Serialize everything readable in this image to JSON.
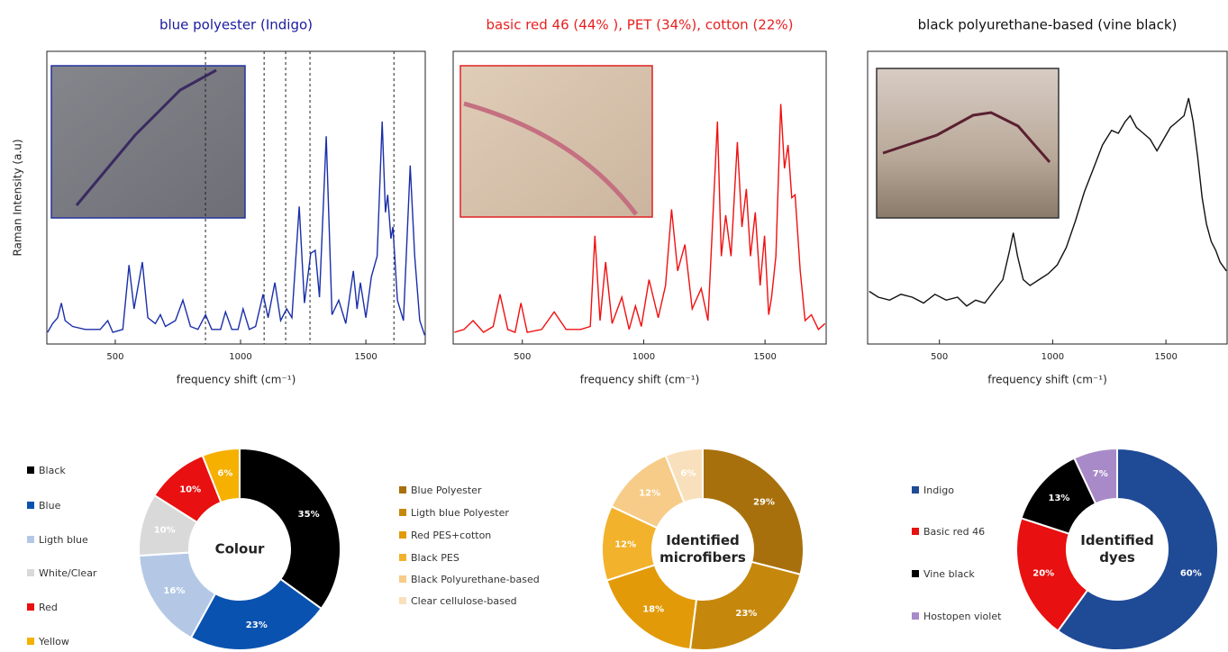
{
  "chart_data": [
    {
      "type": "line",
      "title": "blue polyester (Indigo)",
      "title_color": "#1a1aa0",
      "color": "#1a2fa8",
      "xlabel": "frequency shift (cm⁻¹)",
      "ylabel": "Raman Intensity (a.u)",
      "xlim": [
        227,
        1737
      ],
      "xticks": [
        500,
        1000,
        1500
      ],
      "ylim": [
        0,
        100
      ],
      "vlines": [
        860,
        1094,
        1180,
        1277,
        1612
      ],
      "x": [
        230,
        250,
        270,
        285,
        300,
        330,
        380,
        440,
        470,
        490,
        530,
        555,
        575,
        608,
        630,
        660,
        680,
        700,
        740,
        770,
        800,
        830,
        860,
        885,
        920,
        940,
        965,
        990,
        1010,
        1035,
        1060,
        1090,
        1110,
        1137,
        1160,
        1184,
        1205,
        1234,
        1255,
        1280,
        1298,
        1315,
        1342,
        1365,
        1392,
        1420,
        1450,
        1465,
        1478,
        1500,
        1522,
        1545,
        1565,
        1578,
        1587,
        1600,
        1608,
        1626,
        1650,
        1677,
        1695,
        1715,
        1735
      ],
      "values": [
        4,
        7,
        9,
        14,
        8,
        6,
        5,
        5,
        8,
        4,
        5,
        27,
        12,
        28,
        9,
        7,
        10,
        6,
        8,
        15,
        6,
        5,
        10,
        5,
        5,
        11,
        5,
        5,
        12,
        5,
        6,
        17,
        9,
        21,
        8,
        12,
        9,
        47,
        14,
        31,
        32,
        16,
        71,
        10,
        15,
        7,
        25,
        12,
        21,
        9,
        23,
        30,
        76,
        45,
        51,
        36,
        40,
        15,
        8,
        61,
        30,
        8,
        3
      ]
    },
    {
      "type": "line",
      "title": "basic red 46 (44% ),  PET (34%), cotton (22%)",
      "title_color": "#e82020",
      "color": "#f01010",
      "xlabel": "frequency shift (cm⁻¹)",
      "xlim": [
        215,
        1752
      ],
      "xticks": [
        500,
        1000,
        1500
      ],
      "ylim": [
        0,
        100
      ],
      "x": [
        220,
        260,
        297,
        340,
        380,
        408,
        440,
        470,
        494,
        520,
        580,
        631,
        680,
        740,
        780,
        799,
        820,
        843,
        870,
        910,
        940,
        966,
        990,
        1022,
        1060,
        1090,
        1115,
        1140,
        1170,
        1200,
        1237,
        1265,
        1304,
        1320,
        1338,
        1360,
        1386,
        1405,
        1423,
        1440,
        1460,
        1480,
        1498,
        1515,
        1527,
        1545,
        1565,
        1580,
        1595,
        1610,
        1624,
        1645,
        1665,
        1691,
        1720,
        1747
      ],
      "values": [
        4,
        5,
        8,
        4,
        6,
        17,
        5,
        4,
        14,
        4,
        5,
        11,
        5,
        5,
        6,
        37,
        8,
        28,
        7,
        16,
        5,
        13,
        6,
        22,
        9,
        20,
        46,
        25,
        34,
        12,
        19,
        8,
        76,
        30,
        44,
        30,
        69,
        40,
        53,
        30,
        45,
        20,
        37,
        10,
        16,
        30,
        82,
        60,
        68,
        50,
        51,
        25,
        8,
        10,
        5,
        7
      ]
    },
    {
      "type": "line",
      "title": "black polyurethane-based  (vine black)",
      "title_color": "#111111",
      "color": "#111111",
      "xlabel": "frequency shift (cm⁻¹)",
      "xlim": [
        183,
        1770
      ],
      "xticks": [
        500,
        1000,
        1500
      ],
      "ylim": [
        0,
        100
      ],
      "x": [
        190,
        230,
        280,
        330,
        380,
        430,
        480,
        530,
        580,
        620,
        660,
        700,
        740,
        780,
        810,
        826,
        845,
        870,
        900,
        940,
        980,
        1020,
        1060,
        1100,
        1140,
        1180,
        1220,
        1260,
        1290,
        1320,
        1342,
        1370,
        1400,
        1430,
        1460,
        1490,
        1520,
        1550,
        1580,
        1600,
        1620,
        1640,
        1660,
        1679,
        1700,
        1720,
        1739,
        1767
      ],
      "values": [
        18,
        16,
        15,
        17,
        16,
        14,
        17,
        15,
        16,
        13,
        15,
        14,
        18,
        22,
        32,
        38,
        30,
        22,
        20,
        22,
        24,
        27,
        33,
        42,
        52,
        60,
        68,
        73,
        72,
        76,
        78,
        74,
        72,
        70,
        66,
        70,
        74,
        76,
        78,
        84,
        76,
        64,
        50,
        41,
        35,
        32,
        28,
        25
      ]
    },
    {
      "type": "donut",
      "center_label": [
        "Colour"
      ],
      "categories": [
        "Black",
        "Blue",
        "Ligth blue",
        "White/Clear",
        "Red",
        "Yellow"
      ],
      "values": [
        35,
        23,
        16,
        10,
        10,
        6
      ],
      "value_labels": [
        "35%",
        "23%",
        "16%",
        "10%",
        "10%",
        "6%"
      ],
      "colors": [
        "#000000",
        "#0a52b0",
        "#b4c8e6",
        "#d9d9d9",
        "#e81010",
        "#f5b000"
      ]
    },
    {
      "type": "donut",
      "center_label": [
        "Identified",
        "microfibers"
      ],
      "categories": [
        "Blue Polyester",
        "Ligth blue Polyester",
        "Red PES+cotton",
        "Black PES",
        "Black Polyurethane-based",
        "Clear cellulose-based"
      ],
      "values": [
        29,
        23,
        18,
        12,
        12,
        6
      ],
      "value_labels": [
        "29%",
        "23%",
        "18%",
        "12%",
        "12%",
        "6%"
      ],
      "colors": [
        "#a8700c",
        "#c6880c",
        "#e29a08",
        "#f2b22c",
        "#f6cc88",
        "#f9e0bc"
      ]
    },
    {
      "type": "donut",
      "center_label": [
        "Identified",
        "dyes"
      ],
      "categories": [
        "Indigo",
        "Basic red 46",
        "Vine black",
        "Hostopen violet"
      ],
      "values": [
        60,
        20,
        13,
        7
      ],
      "value_labels": [
        "60%",
        "20%",
        "13%",
        "7%"
      ],
      "colors": [
        "#1f4a96",
        "#e81010",
        "#000000",
        "#a88ac8"
      ]
    }
  ]
}
